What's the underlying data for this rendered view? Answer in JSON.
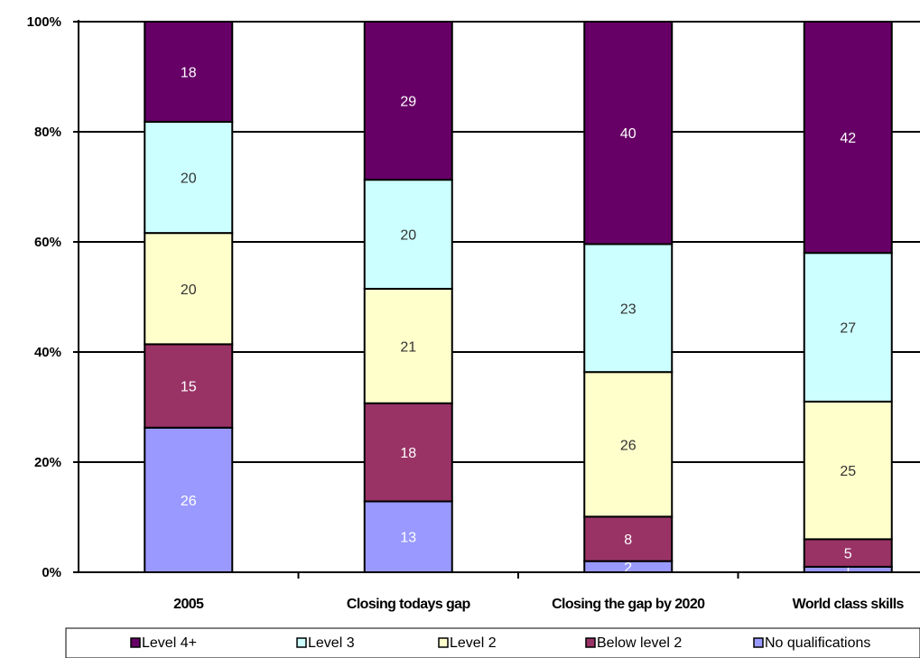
{
  "chart_data": {
    "type": "bar",
    "stacked": true,
    "percent_stacked": true,
    "categories": [
      "2005",
      "Closing todays gap",
      "Closing the gap by 2020",
      "World class skills"
    ],
    "series": [
      {
        "name": "No qualifications",
        "color": "#9999ff",
        "label_color": "#ffffff",
        "values": [
          26,
          13,
          2,
          1
        ]
      },
      {
        "name": "Below level 2",
        "color": "#993366",
        "label_color": "#ffffff",
        "values": [
          15,
          18,
          8,
          5
        ]
      },
      {
        "name": "Level 2",
        "color": "#ffffcc",
        "label_color": "#333333",
        "values": [
          20,
          21,
          26,
          25
        ]
      },
      {
        "name": "Level 3",
        "color": "#ccffff",
        "label_color": "#333333",
        "values": [
          20,
          20,
          23,
          27
        ]
      },
      {
        "name": "Level 4+",
        "color": "#660066",
        "label_color": "#ffffff",
        "values": [
          18,
          29,
          40,
          42
        ]
      }
    ],
    "legend_order": [
      "Level 4+",
      "Level 3",
      "Level 2",
      "Below level 2",
      "No qualifications"
    ],
    "y_ticks": [
      "0%",
      "20%",
      "40%",
      "60%",
      "80%",
      "100%"
    ],
    "ylim": [
      0,
      100
    ],
    "grid": true,
    "legend_position": "bottom"
  }
}
